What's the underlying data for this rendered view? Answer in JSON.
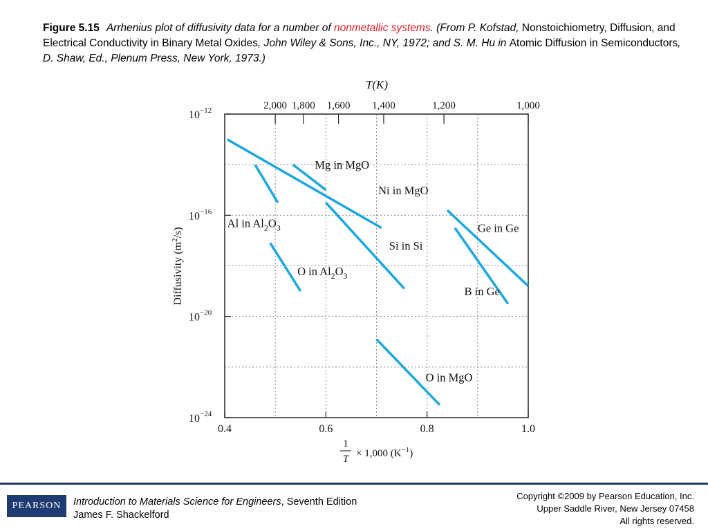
{
  "caption": {
    "figure_label": "Figure 5.15",
    "text_part1": "Arrhenius plot of diffusivity data for a number of ",
    "text_red": "nonmetallic systems",
    "text_part2": ". (From P. Kofstad, ",
    "text_part3": "Nonstoichiometry, Diffusion, and Electrical Conductivity in Binary Metal Oxides",
    "text_part4": ", John Wiley & Sons, Inc., NY, 1972; and S. M. Hu in ",
    "text_part5": "Atomic Diffusion in Semiconductors",
    "text_part6": ", D. Shaw, Ed., Plenum Press, New York, 1973.)"
  },
  "chart_data": {
    "type": "line",
    "top_axis_title": "T(K)",
    "top_axis_ticks": [
      "2,000",
      "1,800",
      "1,600",
      "1,400",
      "1,200",
      "1,000"
    ],
    "top_axis_ticks_K": [
      2000,
      1800,
      1600,
      1400,
      1200,
      1000
    ],
    "ylabel": "Diffusivity (m²/s)",
    "ylabel_main": "Diffusivity (m",
    "ylabel_sup": "2",
    "ylabel_end": "/s)",
    "y_scale": "log",
    "ylim_exp": [
      -24,
      -12
    ],
    "y_ticks": [
      {
        "exp": -12,
        "base": "10",
        "sup": "−12"
      },
      {
        "exp": -16,
        "base": "10",
        "sup": "−16"
      },
      {
        "exp": -20,
        "base": "10",
        "sup": "−20"
      },
      {
        "exp": -24,
        "base": "10",
        "sup": "−24"
      }
    ],
    "xlim": [
      0.4,
      1.0
    ],
    "x_ticks": [
      "0.4",
      "0.6",
      "0.8",
      "1.0"
    ],
    "x_tick_values": [
      0.4,
      0.6,
      0.8,
      1.0
    ],
    "xlabel_frac_num": "1",
    "xlabel_frac_den": "T",
    "xlabel_rest": "× 1,000 (K",
    "xlabel_sup": "−1",
    "xlabel_close": ")",
    "grid": true,
    "line_color": "#1aa7e0",
    "series": [
      {
        "name": "Mg in MgO",
        "x": [
          0.535,
          0.6
        ],
        "log10_D": [
          -14.0,
          -15.0
        ]
      },
      {
        "name": "Ni in MgO",
        "x": [
          0.405,
          0.71
        ],
        "log10_D": [
          -13.0,
          -16.5
        ]
      },
      {
        "name": "Al in Al₂O₃",
        "x": [
          0.46,
          0.505
        ],
        "log10_D": [
          -14.0,
          -15.5
        ]
      },
      {
        "name": "Si in Si",
        "x": [
          0.6,
          0.755
        ],
        "log10_D": [
          -15.5,
          -18.9
        ]
      },
      {
        "name": "O in Al₂O₃",
        "x": [
          0.49,
          0.55
        ],
        "log10_D": [
          -17.1,
          -19.0
        ]
      },
      {
        "name": "Ge in Ge",
        "x": [
          0.84,
          1.0
        ],
        "log10_D": [
          -15.8,
          -18.8
        ]
      },
      {
        "name": "B in Ge",
        "x": [
          0.855,
          0.96
        ],
        "log10_D": [
          -16.5,
          -19.5
        ]
      },
      {
        "name": "O in MgO",
        "x": [
          0.7,
          0.825
        ],
        "log10_D": [
          -20.9,
          -23.5
        ]
      }
    ],
    "series_labels": [
      {
        "main": "Mg in MgO",
        "sub": "",
        "end": ""
      },
      {
        "main": "Ni in MgO",
        "sub": "",
        "end": ""
      },
      {
        "main": "Al in Al",
        "sub": "2",
        "mid": "O",
        "sub2": "3"
      },
      {
        "main": "Si in Si",
        "sub": "",
        "end": ""
      },
      {
        "main": "O in Al",
        "sub": "2",
        "mid": "O",
        "sub2": "3"
      },
      {
        "main": "Ge in Ge",
        "sub": "",
        "end": ""
      },
      {
        "main": "B in Ge",
        "sub": "",
        "end": ""
      },
      {
        "main": "O in MgO",
        "sub": "",
        "end": ""
      }
    ]
  },
  "footer": {
    "book_title": "Introduction to Materials Science for Engineers",
    "book_edition": ", Seventh Edition",
    "author": "James F. Shackelford",
    "copyright_line1": "Copyright ©2009 by Pearson Education, Inc.",
    "copyright_line2": "Upper Saddle River, New Jersey 07458",
    "copyright_line3": "All rights reserved.",
    "logo_text": "PEARSON",
    "brand_color": "#1f3b73"
  }
}
